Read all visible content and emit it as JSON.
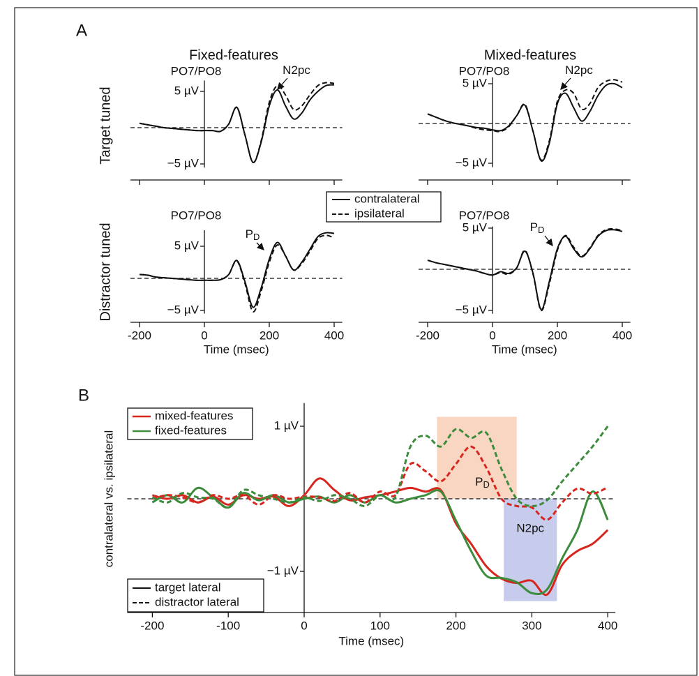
{
  "figure": {
    "panel_labels": [
      "A",
      "B"
    ],
    "column_titles": [
      "Fixed-features",
      "Mixed-features"
    ],
    "row_titles": [
      "Target tuned",
      "Distractor tuned"
    ]
  },
  "chart_data": [
    {
      "type": "line",
      "title": "PO7/PO8",
      "x": [
        -200,
        -175,
        -150,
        -125,
        -100,
        -75,
        -50,
        -25,
        0,
        25,
        50,
        75,
        100,
        125,
        150,
        175,
        200,
        225,
        250,
        275,
        300,
        325,
        350,
        375,
        400
      ],
      "series": [
        {
          "name": "contralateral",
          "color": "#111111",
          "dashed": false,
          "values": [
            0.6,
            0.4,
            0.2,
            0,
            -0.1,
            -0.2,
            -0.3,
            -0.4,
            -0.4,
            -0.4,
            -0.5,
            0.5,
            2.8,
            -1,
            -4.8,
            -2,
            3,
            5.2,
            3,
            1.2,
            2,
            3.8,
            5,
            5.8,
            5.9
          ]
        },
        {
          "name": "ipsilateral",
          "color": "#111111",
          "dashed": true,
          "values": [
            0.6,
            0.4,
            0.2,
            0,
            -0.1,
            -0.2,
            -0.3,
            -0.4,
            -0.4,
            -0.4,
            -0.5,
            0.5,
            2.8,
            -1,
            -4.8,
            -1.8,
            3.5,
            5.8,
            4.5,
            2.5,
            3,
            4.5,
            5.8,
            6.2,
            6.1
          ]
        }
      ],
      "xlim": [
        -228,
        425
      ],
      "ylim": [
        -5.5,
        6.5
      ],
      "xticks": [
        -200,
        0,
        200,
        400
      ],
      "show_xtick_labels": false,
      "yticks": [
        {
          "value": 5,
          "label": "5 µV"
        },
        {
          "value": -5,
          "label": "−5 µV"
        }
      ],
      "zero_line": true,
      "legend": true,
      "annotations": [
        {
          "text": "N2pc"
        }
      ]
    },
    {
      "type": "line",
      "title": "PO7/PO8",
      "x": [
        -200,
        -175,
        -150,
        -125,
        -100,
        -75,
        -50,
        -25,
        0,
        25,
        50,
        75,
        100,
        125,
        150,
        175,
        200,
        225,
        250,
        275,
        300,
        325,
        350,
        375,
        400
      ],
      "series": [
        {
          "color": "#111111",
          "dashed": false,
          "values": [
            1.2,
            0.8,
            0.4,
            0.1,
            -0.1,
            -0.3,
            -0.5,
            -0.6,
            -0.8,
            -0.9,
            -0.3,
            1,
            2.3,
            -1,
            -4.7,
            -2.5,
            2.5,
            3.8,
            2,
            0.3,
            1.5,
            3.5,
            4.8,
            5,
            4.5
          ]
        },
        {
          "color": "#111111",
          "dashed": true,
          "values": [
            1.2,
            0.8,
            0.4,
            0.1,
            -0.1,
            -0.3,
            -0.6,
            -0.8,
            -0.9,
            -1,
            -0.4,
            1,
            2.4,
            -1,
            -4.6,
            -2.2,
            2.8,
            4.2,
            3.8,
            1.8,
            2.5,
            4.5,
            5.3,
            5.5,
            5.2
          ]
        }
      ],
      "xlim": [
        -228,
        425
      ],
      "ylim": [
        -5.5,
        5.8
      ],
      "xticks": [
        -200,
        0,
        200,
        400
      ],
      "show_xtick_labels": false,
      "yticks": [
        {
          "value": 5,
          "label": "5 µV"
        },
        {
          "value": -5,
          "label": "−5 µV"
        }
      ],
      "zero_line": true,
      "annotations": [
        {
          "text": "N2pc"
        }
      ]
    },
    {
      "type": "line",
      "title": "PO7/PO8",
      "x": [
        -200,
        -175,
        -150,
        -125,
        -100,
        -75,
        -50,
        -25,
        0,
        25,
        50,
        75,
        100,
        125,
        150,
        175,
        200,
        225,
        250,
        275,
        300,
        325,
        350,
        375,
        400
      ],
      "series": [
        {
          "color": "#111111",
          "dashed": false,
          "values": [
            0.6,
            0.5,
            0.2,
            0.1,
            0,
            -0.1,
            -0.2,
            -0.3,
            -0.3,
            -0.3,
            -0.2,
            0.6,
            2.8,
            -0.5,
            -4.5,
            -1.5,
            3,
            5.6,
            3.5,
            1.3,
            2.5,
            4.5,
            6.5,
            7.1,
            7
          ]
        },
        {
          "color": "#111111",
          "dashed": true,
          "values": [
            0.6,
            0.5,
            0.2,
            0.1,
            0,
            -0.1,
            -0.2,
            -0.3,
            -0.3,
            -0.3,
            -0.2,
            0.6,
            2.7,
            -0.8,
            -5.2,
            -2,
            2.5,
            5.2,
            3.5,
            1.3,
            2.3,
            4.2,
            6.2,
            6.7,
            6.3
          ]
        }
      ],
      "xlim": [
        -228,
        425
      ],
      "ylim": [
        -5.5,
        7.5
      ],
      "xticks": [
        -200,
        0,
        200,
        400
      ],
      "xlabel": "Time (msec)",
      "yticks": [
        {
          "value": 5,
          "label": "5 µV"
        },
        {
          "value": -5,
          "label": "−5 µV"
        }
      ],
      "zero_line": true,
      "annotations": [
        {
          "text": "P",
          "subscript": "D"
        }
      ]
    },
    {
      "type": "line",
      "title": "PO7/PO8",
      "x": [
        -200,
        -175,
        -150,
        -125,
        -100,
        -75,
        -50,
        -25,
        0,
        25,
        50,
        75,
        100,
        125,
        150,
        175,
        200,
        225,
        250,
        275,
        300,
        325,
        350,
        375,
        400
      ],
      "series": [
        {
          "color": "#111111",
          "dashed": false,
          "values": [
            1.1,
            0.8,
            0.6,
            0.4,
            0.2,
            0,
            -0.2,
            -0.5,
            -0.7,
            -0.3,
            -0.5,
            0.2,
            2.2,
            -0.5,
            -4.9,
            -1.5,
            2.5,
            4,
            2.5,
            1.5,
            2.5,
            4,
            4.7,
            4.8,
            4.6
          ]
        },
        {
          "color": "#111111",
          "dashed": true,
          "values": [
            1.1,
            0.8,
            0.6,
            0.4,
            0.2,
            0,
            -0.2,
            -0.5,
            -0.7,
            -0.4,
            -0.6,
            0.2,
            2.3,
            -0.6,
            -5,
            -1.8,
            2.3,
            4.1,
            2.7,
            1.6,
            2.6,
            4.1,
            4.8,
            4.9,
            4.7
          ]
        }
      ],
      "xlim": [
        -228,
        425
      ],
      "ylim": [
        -5.4,
        5.2
      ],
      "xticks": [
        -200,
        0,
        200,
        400
      ],
      "xlabel": "Time (msec)",
      "yticks": [
        {
          "value": 5,
          "label": "5 µV"
        },
        {
          "value": -5,
          "label": "−5 µV"
        }
      ],
      "zero_line": true,
      "annotations": [
        {
          "text": "P",
          "subscript": "D"
        }
      ]
    },
    {
      "type": "line",
      "x": [
        -200,
        -180,
        -160,
        -140,
        -120,
        -100,
        -80,
        -60,
        -40,
        -20,
        0,
        20,
        40,
        60,
        80,
        100,
        120,
        140,
        160,
        180,
        200,
        220,
        240,
        260,
        280,
        300,
        320,
        340,
        360,
        380,
        400
      ],
      "series": [
        {
          "color": "#d7261e",
          "dashed": false,
          "values": [
            0.05,
            0,
            0.05,
            -0.05,
            0.03,
            -0.08,
            0.05,
            0,
            0.03,
            -0.1,
            0.05,
            0.28,
            0.12,
            -0.02,
            0.02,
            0.05,
            0.1,
            0.15,
            0.1,
            0.12,
            -0.34,
            -0.62,
            -0.93,
            -1.1,
            -1.16,
            -1.13,
            -1.32,
            -0.91,
            -0.72,
            -0.62,
            -0.43
          ]
        },
        {
          "color": "#3c8c3c",
          "dashed": false,
          "values": [
            -0.05,
            0.05,
            -0.05,
            0.15,
            0.02,
            -0.12,
            0.08,
            -0.02,
            0.05,
            -0.05,
            0,
            0.03,
            -0.05,
            0.05,
            -0.05,
            0.05,
            -0.05,
            0,
            0.05,
            0.1,
            -0.3,
            -0.72,
            -1.06,
            -1.09,
            -1.15,
            -1.3,
            -1.25,
            -0.82,
            -0.43,
            0.1,
            -0.29
          ]
        },
        {
          "color": "#d7261e",
          "dashed": true,
          "values": [
            0,
            0.05,
            0.02,
            -0.05,
            0.05,
            0,
            0.05,
            -0.08,
            0.05,
            0,
            0.03,
            0.02,
            -0.03,
            0.08,
            -0.05,
            0.1,
            0.05,
            0.48,
            0.38,
            0.24,
            0.48,
            0.72,
            0.43,
            0,
            -0.1,
            -0.12,
            -0.29,
            -0.05,
            0.14,
            0.07,
            0.16
          ]
        },
        {
          "color": "#3c8c3c",
          "dashed": true,
          "values": [
            0.02,
            -0.05,
            0.08,
            0.02,
            0,
            -0.12,
            0.12,
            0.05,
            0,
            -0.05,
            0.02,
            -0.03,
            0.05,
            0,
            -0.1,
            0.05,
            0.02,
            0.72,
            0.87,
            0.72,
            0.96,
            0.84,
            0.91,
            0.41,
            0,
            -0.1,
            -0.02,
            0.24,
            0.48,
            0.72,
            1.0
          ]
        }
      ],
      "legends": [
        [
          {
            "name": "mixed-features",
            "color": "#d7261e"
          },
          {
            "name": "fixed-features",
            "color": "#3c8c3c"
          }
        ],
        [
          {
            "name": "target lateral",
            "dashed": false
          },
          {
            "name": "distractor lateral",
            "dashed": true
          }
        ]
      ],
      "xlim": [
        -233,
        410
      ],
      "ylim": [
        -1.57,
        1.32
      ],
      "xticks": [
        -200,
        -100,
        0,
        100,
        200,
        300,
        400
      ],
      "yticks": [
        {
          "value": 1,
          "label": "1 µV"
        },
        {
          "value": -1,
          "label": "−1 µV"
        }
      ],
      "zero_line": true,
      "xlabel": "Time (msec)",
      "ylabel": "contralateral vs. ipsilateral",
      "regions": [
        {
          "text": "P",
          "subscript": "D",
          "x": [
            175,
            280
          ],
          "y": [
            0,
            1.13
          ],
          "color": "#f5c8ad"
        },
        {
          "text": "N2pc",
          "x": [
            263,
            333
          ],
          "y": [
            0,
            -1.41
          ],
          "color": "#b4b9e6"
        }
      ]
    }
  ]
}
